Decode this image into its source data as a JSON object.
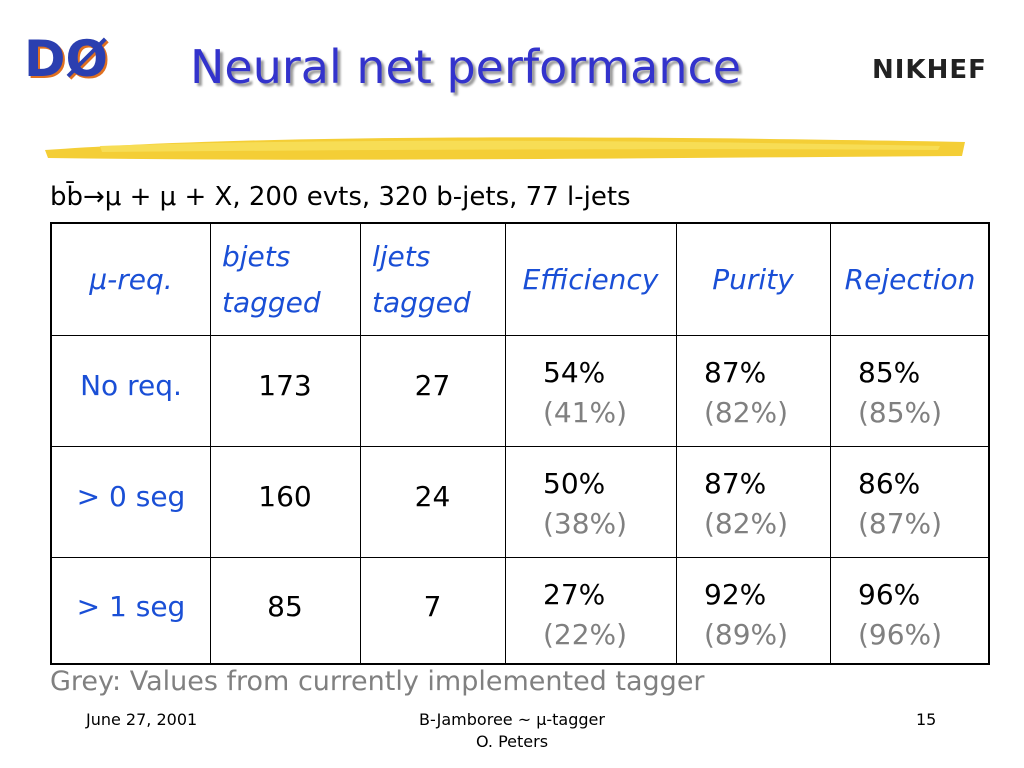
{
  "header": {
    "title": "Neural net performance",
    "logo_left": "DØ",
    "logo_right": "NIKHEF"
  },
  "subtitle": "bb̄→μ + μ + X, 200 evts, 320 b-jets, 77 l-jets",
  "table": {
    "columns": [
      "μ-req.",
      "bjets tagged",
      "ljets tagged",
      "Efficiency",
      "Purity",
      "Rejection"
    ],
    "rows": [
      [
        "No req.",
        "173",
        "27",
        {
          "main": "54%",
          "grey": "(41%)"
        },
        {
          "main": "87%",
          "grey": "(82%)"
        },
        {
          "main": "85%",
          "grey": "(85%)"
        }
      ],
      [
        "> 0 seg",
        "160",
        "24",
        {
          "main": "50%",
          "grey": "(38%)"
        },
        {
          "main": "87%",
          "grey": "(82%)"
        },
        {
          "main": "86%",
          "grey": "(87%)"
        }
      ],
      [
        "> 1 seg",
        "85",
        "7",
        {
          "main": "27%",
          "grey": "(22%)"
        },
        {
          "main": "92%",
          "grey": "(89%)"
        },
        {
          "main": "96%",
          "grey": "(96%)"
        }
      ]
    ]
  },
  "note": "Grey: Values from currently implemented tagger",
  "footer": {
    "date": "June 27, 2001",
    "event": "B-Jamboree ~ μ-tagger",
    "author": "O. Peters",
    "page": "15"
  }
}
